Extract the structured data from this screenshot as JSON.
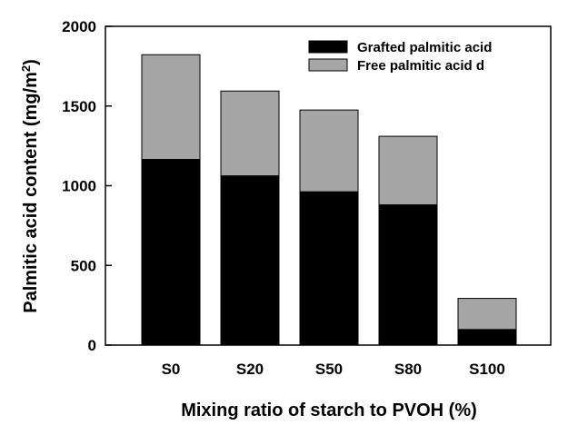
{
  "chart_data": {
    "type": "bar",
    "stacked": true,
    "title": "",
    "xlabel": "Mixing ratio of starch to PVOH (%)",
    "ylabel_main": "Palmitic acid content (mg/m",
    "ylabel_sup": "2",
    "ylabel_close": ")",
    "ylim": [
      0,
      2000
    ],
    "yticks": [
      0,
      500,
      1000,
      1500,
      2000
    ],
    "categories": [
      "S0",
      "S20",
      "S50",
      "S80",
      "S100"
    ],
    "series": [
      {
        "name": "Grafted palmitic acid",
        "color": "#000000",
        "values": [
          1165,
          1062,
          962,
          880,
          98
        ]
      },
      {
        "name": "Free palmitic acid d",
        "color": "#a6a6a6",
        "values": [
          657,
          532,
          513,
          430,
          195
        ]
      }
    ],
    "legend_position": "top-right",
    "grid": false
  }
}
